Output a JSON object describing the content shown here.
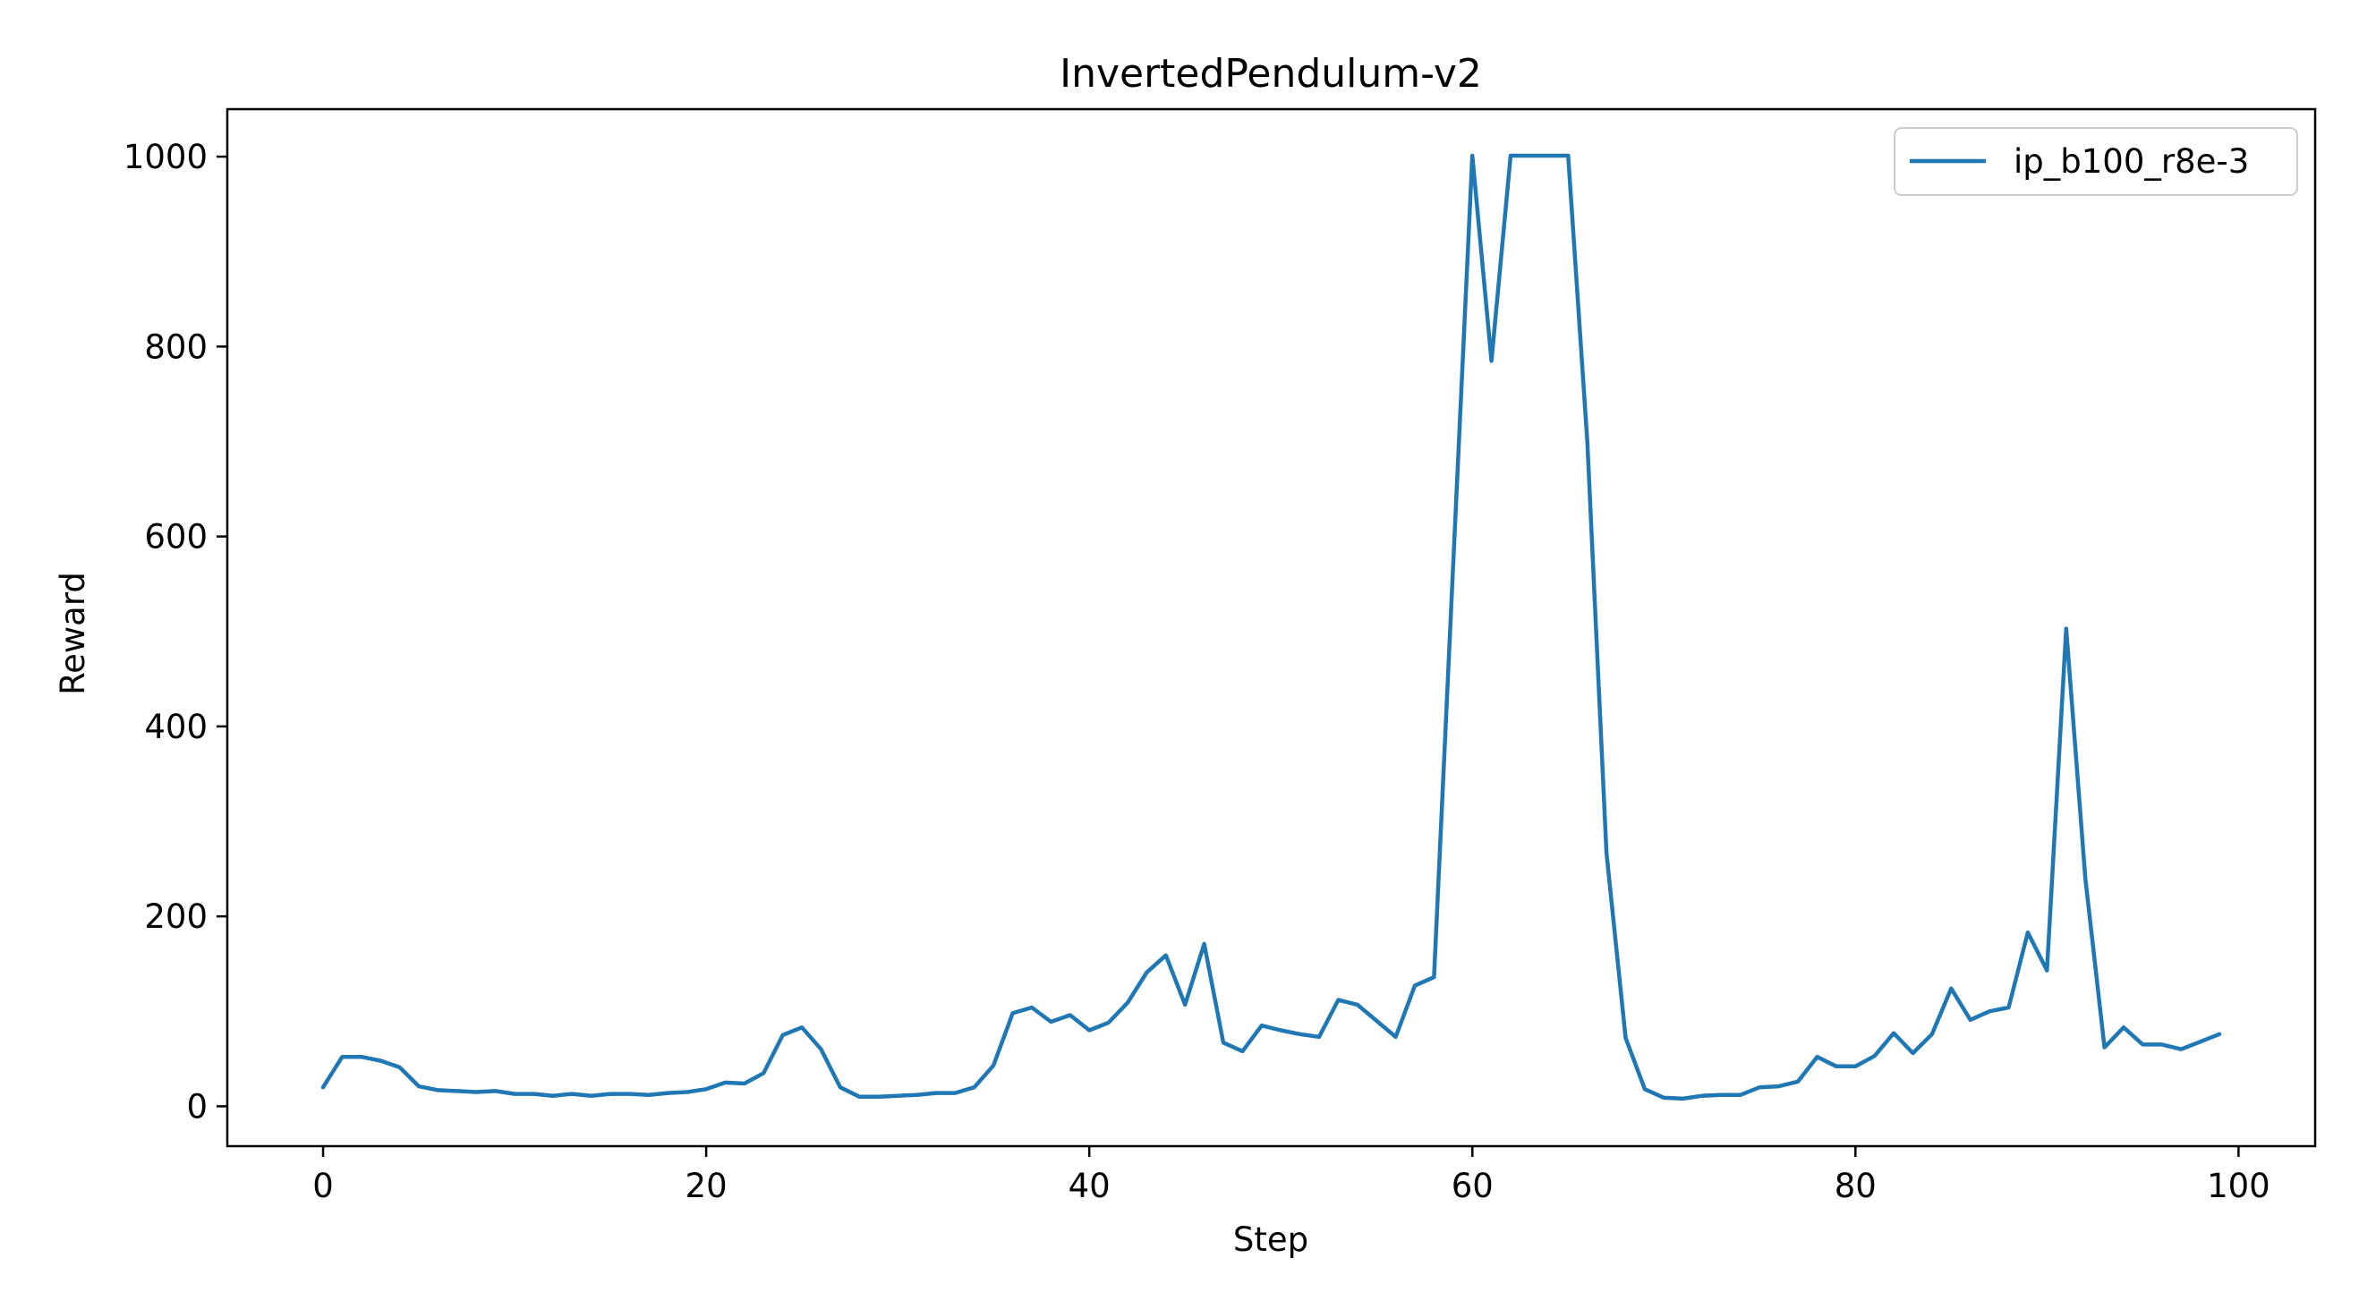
{
  "chart_data": {
    "type": "line",
    "title": "InvertedPendulum-v2",
    "xlabel": "Step",
    "ylabel": "Reward",
    "xlim": [
      -5,
      104
    ],
    "ylim": [
      -42,
      1050
    ],
    "xticks": [
      0,
      20,
      40,
      60,
      80,
      100
    ],
    "xtick_labels": [
      "0",
      "20",
      "40",
      "60",
      "80",
      "100"
    ],
    "yticks": [
      0,
      200,
      400,
      600,
      800,
      1000
    ],
    "ytick_labels": [
      "0",
      "200",
      "400",
      "600",
      "800",
      "1000"
    ],
    "grid": false,
    "legend_position": "top-right",
    "series": [
      {
        "name": "ip_b100_r8e-3",
        "color": "#1f77b4",
        "x": [
          0,
          1,
          2,
          3,
          4,
          5,
          6,
          7,
          8,
          9,
          10,
          11,
          12,
          13,
          14,
          15,
          16,
          17,
          18,
          19,
          20,
          21,
          22,
          23,
          24,
          25,
          26,
          27,
          28,
          29,
          30,
          31,
          32,
          33,
          34,
          35,
          36,
          37,
          38,
          39,
          40,
          41,
          42,
          43,
          44,
          45,
          46,
          47,
          48,
          49,
          50,
          51,
          52,
          53,
          54,
          55,
          56,
          57,
          58,
          59,
          60,
          61,
          62,
          63,
          64,
          65,
          66,
          67,
          68,
          69,
          70,
          71,
          72,
          73,
          74,
          75,
          76,
          77,
          78,
          79,
          80,
          81,
          82,
          83,
          84,
          85,
          86,
          87,
          88,
          89,
          90,
          91,
          92,
          93,
          94,
          95,
          96,
          97,
          98,
          99
        ],
        "values": [
          20,
          52,
          52,
          48,
          41,
          21,
          17,
          16,
          15,
          16,
          13,
          13,
          11,
          13,
          11,
          13,
          13,
          12,
          14,
          15,
          18,
          25,
          24,
          35,
          75,
          83,
          60,
          20,
          10,
          10,
          11,
          12,
          14,
          14,
          20,
          43,
          98,
          104,
          89,
          96,
          80,
          88,
          109,
          141,
          159,
          107,
          171,
          67,
          58,
          85,
          80,
          76,
          73,
          112,
          107,
          90,
          73,
          127,
          136,
          570,
          1001,
          785,
          1001,
          1001,
          1001,
          1001,
          700,
          267,
          72,
          18,
          9,
          8,
          11,
          12,
          12,
          20,
          21,
          26,
          52,
          42,
          42,
          53,
          77,
          56,
          76,
          124,
          91,
          100,
          104,
          183,
          143,
          503,
          240,
          62,
          83,
          65,
          65,
          60,
          68,
          76
        ]
      }
    ]
  }
}
